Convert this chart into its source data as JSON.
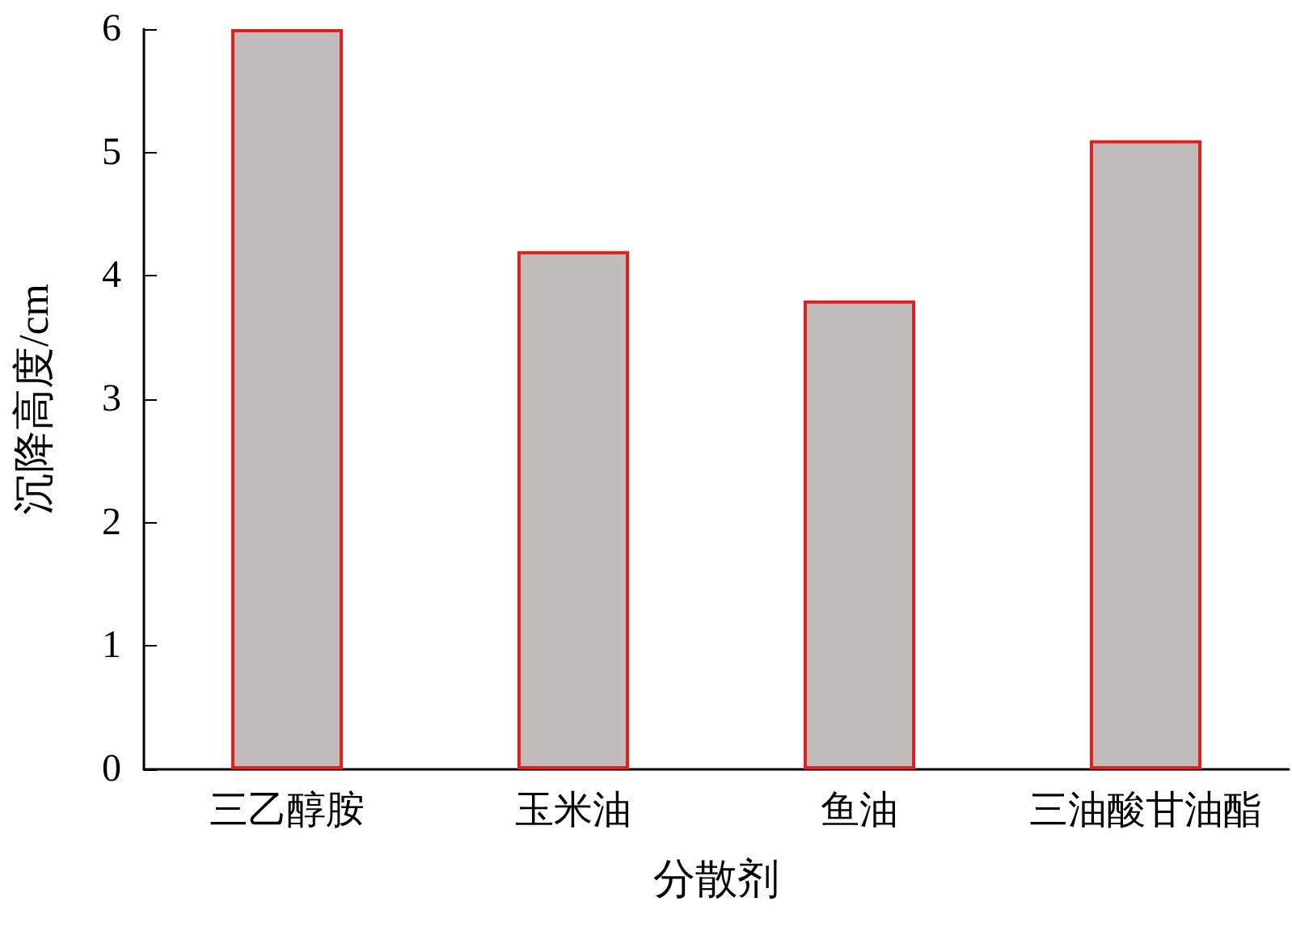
{
  "chart_data": {
    "type": "bar",
    "xlabel": "分散剂",
    "ylabel": "沉降高度/cm",
    "categories": [
      "三乙醇胺",
      "玉米油",
      "鱼油",
      "三油酸甘油酯"
    ],
    "values": [
      6.0,
      4.2,
      3.8,
      5.1
    ],
    "color": "#c0bcbc",
    "ylim": [
      0,
      6
    ],
    "yticks": [
      0,
      1,
      2,
      3,
      4,
      5,
      6
    ],
    "grid": false
  }
}
